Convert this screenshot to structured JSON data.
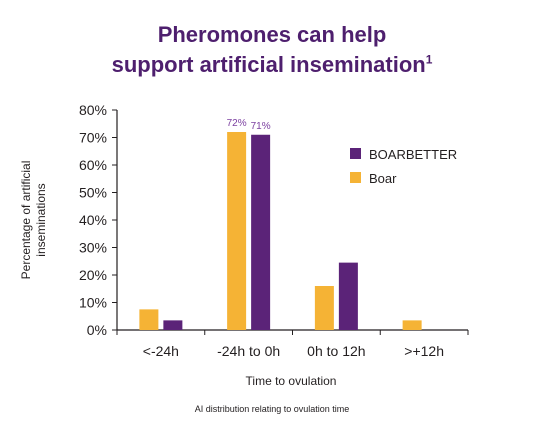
{
  "header": {
    "title_line1": "Pheromones can help",
    "title_line2": "support artificial insemination",
    "title_superscript": "1"
  },
  "caption": "AI distribution relating to ovulation time",
  "colors": {
    "title": "#4e1f6e",
    "boarbetter": "#5b2378",
    "boar": "#f5b335",
    "data_label": "#7b3fa0",
    "axis": "#231f20"
  },
  "chart_data": {
    "type": "bar",
    "title": "",
    "xlabel": "Time to ovulation",
    "ylabel": "Percentage of artificial inseminations",
    "ylabel_lines": [
      "Percentage of artificial",
      "inseminations"
    ],
    "categories": [
      "<-24h",
      "-24h to 0h",
      "0h to 12h",
      ">+12h"
    ],
    "ylim": [
      0,
      80
    ],
    "yticks": [
      0,
      10,
      20,
      30,
      40,
      50,
      60,
      70,
      80
    ],
    "ytick_labels": [
      "0%",
      "10%",
      "20%",
      "30%",
      "40%",
      "50%",
      "60%",
      "70%",
      "80%"
    ],
    "grid": false,
    "legend_position": "right",
    "series": [
      {
        "name": "Boar",
        "color": "#f5b335",
        "values": [
          7.5,
          72,
          16,
          3.5
        ],
        "labels": [
          "",
          "72%",
          "",
          ""
        ]
      },
      {
        "name": "BOARBETTER",
        "color": "#5b2378",
        "values": [
          3.5,
          71,
          24.5,
          0
        ],
        "labels": [
          "",
          "71%",
          "",
          ""
        ]
      }
    ],
    "legend_order": [
      "BOARBETTER",
      "Boar"
    ]
  }
}
